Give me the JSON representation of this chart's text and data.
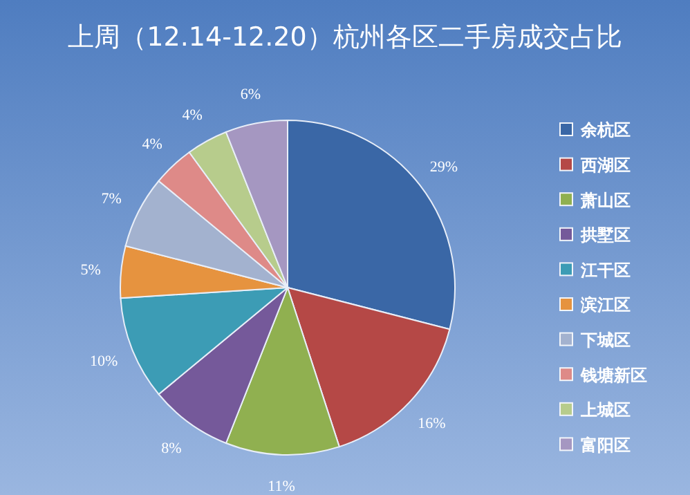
{
  "chart_data": {
    "type": "pie",
    "title": "上周（12.14-12.20）杭州各区二手房成交占比",
    "categories": [
      "余杭区",
      "西湖区",
      "萧山区",
      "拱墅区",
      "江干区",
      "滨江区",
      "下城区",
      "钱塘新区",
      "上城区",
      "富阳区"
    ],
    "values": [
      29,
      16,
      11,
      8,
      10,
      5,
      7,
      4,
      4,
      6
    ],
    "colors": [
      "#3a67a6",
      "#b54846",
      "#90b050",
      "#75599a",
      "#3c9cb5",
      "#e6933f",
      "#a3b2cf",
      "#de8a88",
      "#b7cc8c",
      "#a597c1"
    ],
    "value_labels": [
      "29%",
      "16%",
      "11%",
      "8%",
      "10%",
      "5%",
      "7%",
      "4%",
      "4%",
      "6%"
    ],
    "legend": "right"
  }
}
